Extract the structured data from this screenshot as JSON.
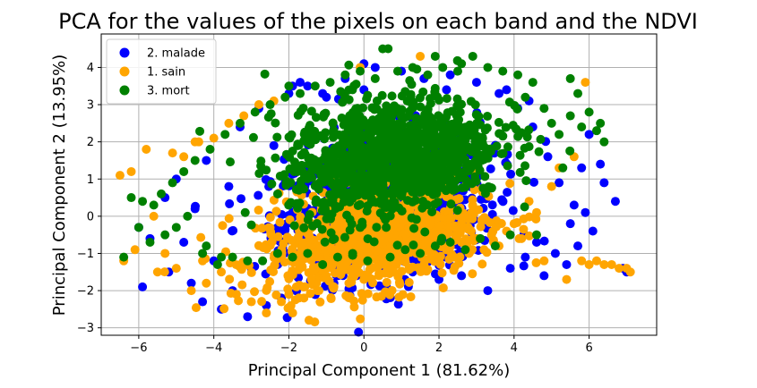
{
  "chart_data": {
    "type": "scatter",
    "title": "PCA for the values of the pixels on each band and the NDVI",
    "xlabel": "Principal Component 1 (81.62%)",
    "ylabel": "Principal Component 2 (13.95%)",
    "xlim": [
      -7.0,
      7.8
    ],
    "ylim": [
      -3.2,
      4.9
    ],
    "xticks": [
      -6,
      -4,
      -2,
      0,
      2,
      4,
      6
    ],
    "yticks": [
      -3,
      -2,
      -1,
      0,
      1,
      2,
      3,
      4
    ],
    "grid": true,
    "legend_position": "top-left",
    "series": [
      {
        "name": "2. malade",
        "color": "#0000ff",
        "points": [
          [
            -6.0,
            -0.3
          ],
          [
            -5.9,
            -1.9
          ],
          [
            -5.7,
            -0.6
          ],
          [
            -5.3,
            0.5
          ],
          [
            -5.2,
            -1.5
          ],
          [
            -5.0,
            1.0
          ],
          [
            -4.8,
            -0.7
          ],
          [
            -4.6,
            -1.8
          ],
          [
            -4.5,
            0.2
          ],
          [
            -4.3,
            -2.3
          ],
          [
            -4.2,
            1.5
          ],
          [
            -4.0,
            -1.2
          ],
          [
            -3.8,
            -2.5
          ],
          [
            -3.6,
            0.8
          ],
          [
            -3.5,
            -2.0
          ],
          [
            -3.3,
            2.4
          ],
          [
            -3.1,
            -2.7
          ],
          [
            -3.0,
            -1.4
          ],
          [
            -2.8,
            2.9
          ],
          [
            -2.6,
            -2.4
          ],
          [
            -2.4,
            1.9
          ],
          [
            -2.2,
            -2.2
          ],
          [
            -2.0,
            3.3
          ],
          [
            -1.9,
            3.5
          ],
          [
            -1.7,
            3.6
          ],
          [
            -1.5,
            3.5
          ],
          [
            -1.3,
            -2.1
          ],
          [
            -1.0,
            3.2
          ],
          [
            -0.8,
            -1.8
          ],
          [
            -0.5,
            3.7
          ],
          [
            -0.2,
            -1.6
          ],
          [
            0.0,
            3.4
          ],
          [
            0.3,
            4.0
          ],
          [
            0.6,
            -1.9
          ],
          [
            1.0,
            3.9
          ],
          [
            1.3,
            -1.5
          ],
          [
            1.6,
            3.7
          ],
          [
            2.0,
            -1.7
          ],
          [
            2.3,
            3.8
          ],
          [
            2.6,
            -1.6
          ],
          [
            3.0,
            3.6
          ],
          [
            3.3,
            -2.0
          ],
          [
            3.6,
            3.3
          ],
          [
            3.9,
            -1.4
          ],
          [
            4.1,
            2.9
          ],
          [
            4.3,
            -1.1
          ],
          [
            4.5,
            2.4
          ],
          [
            4.6,
            -0.7
          ],
          [
            4.8,
            -1.6
          ],
          [
            4.9,
            1.6
          ],
          [
            5.1,
            -1.0
          ],
          [
            5.2,
            0.9
          ],
          [
            5.4,
            -1.3
          ],
          [
            5.5,
            -0.2
          ],
          [
            5.6,
            0.3
          ],
          [
            5.7,
            -0.8
          ],
          [
            5.8,
            1.3
          ],
          [
            5.9,
            0.1
          ],
          [
            6.0,
            2.2
          ],
          [
            6.1,
            -0.4
          ],
          [
            6.3,
            1.4
          ],
          [
            6.4,
            0.9
          ],
          [
            6.7,
            0.4
          ],
          [
            6.9,
            -1.4
          ],
          [
            7.0,
            -1.5
          ],
          [
            2.2,
            3.4
          ],
          [
            0.0,
            4.1
          ],
          [
            -1.1,
            3.3
          ],
          [
            3.8,
            3.4
          ],
          [
            4.4,
            3.1
          ]
        ]
      },
      {
        "name": "1. sain",
        "color": "#ffa500",
        "points": [
          [
            -6.5,
            1.1
          ],
          [
            -6.4,
            -1.2
          ],
          [
            -6.2,
            1.2
          ],
          [
            -6.1,
            -0.9
          ],
          [
            -5.8,
            1.8
          ],
          [
            -5.6,
            0.0
          ],
          [
            -5.5,
            -1.5
          ],
          [
            -5.3,
            -1.0
          ],
          [
            -5.1,
            1.7
          ],
          [
            -5.0,
            -1.4
          ],
          [
            -4.8,
            1.6
          ],
          [
            -4.6,
            -2.0
          ],
          [
            -4.4,
            2.0
          ],
          [
            -4.2,
            -1.8
          ],
          [
            -4.0,
            2.1
          ],
          [
            -3.8,
            -1.5
          ],
          [
            -3.6,
            2.5
          ],
          [
            -3.4,
            -2.1
          ],
          [
            -3.2,
            2.7
          ],
          [
            -3.0,
            -2.3
          ],
          [
            -2.8,
            3.0
          ],
          [
            -2.6,
            -2.6
          ],
          [
            -2.4,
            3.1
          ],
          [
            -2.2,
            -2.3
          ],
          [
            -2.0,
            -2.1
          ],
          [
            -1.8,
            -1.9
          ],
          [
            -1.6,
            -2.2
          ],
          [
            -1.4,
            -1.7
          ],
          [
            -1.2,
            -2.0
          ],
          [
            -1.0,
            -1.6
          ],
          [
            -0.8,
            -1.9
          ],
          [
            -0.6,
            -1.5
          ],
          [
            -0.4,
            -1.8
          ],
          [
            -0.2,
            -1.3
          ],
          [
            0.0,
            -1.7
          ],
          [
            0.2,
            -1.4
          ],
          [
            0.4,
            -1.6
          ],
          [
            0.6,
            -1.2
          ],
          [
            0.8,
            -1.5
          ],
          [
            1.0,
            -1.1
          ],
          [
            1.2,
            -1.4
          ],
          [
            1.4,
            -1.0
          ],
          [
            1.6,
            -1.3
          ],
          [
            1.8,
            -0.9
          ],
          [
            2.0,
            -1.2
          ],
          [
            2.2,
            -0.8
          ],
          [
            2.4,
            -1.1
          ],
          [
            2.6,
            -0.7
          ],
          [
            2.8,
            -1.0
          ],
          [
            3.0,
            -0.6
          ],
          [
            3.2,
            -0.9
          ],
          [
            3.4,
            -0.5
          ],
          [
            3.6,
            -0.8
          ],
          [
            3.8,
            -0.4
          ],
          [
            4.0,
            -0.2
          ],
          [
            4.2,
            -0.6
          ],
          [
            4.4,
            0.4
          ],
          [
            4.6,
            0.1
          ],
          [
            4.8,
            -1.2
          ],
          [
            5.0,
            0.8
          ],
          [
            5.2,
            1.3
          ],
          [
            5.4,
            -1.7
          ],
          [
            5.6,
            1.6
          ],
          [
            5.8,
            -1.2
          ],
          [
            6.0,
            -1.3
          ],
          [
            6.2,
            -1.2
          ],
          [
            6.4,
            -1.3
          ],
          [
            6.6,
            -1.3
          ],
          [
            6.8,
            -1.4
          ],
          [
            7.0,
            -1.4
          ],
          [
            7.1,
            -1.5
          ],
          [
            5.9,
            3.6
          ],
          [
            1.5,
            4.3
          ],
          [
            -0.1,
            4.0
          ],
          [
            -4.3,
            -1.2
          ],
          [
            -4.5,
            2.0
          ],
          [
            -1.9,
            -2.6
          ],
          [
            2.5,
            -0.5
          ]
        ]
      },
      {
        "name": "3. mort",
        "color": "#008000",
        "points": [
          [
            -6.4,
            -1.1
          ],
          [
            -6.2,
            0.5
          ],
          [
            -6.0,
            -0.3
          ],
          [
            -5.9,
            0.4
          ],
          [
            -5.7,
            -0.7
          ],
          [
            -5.6,
            0.3
          ],
          [
            -5.4,
            0.6
          ],
          [
            -5.3,
            -0.5
          ],
          [
            -5.1,
            0.9
          ],
          [
            -5.0,
            -0.3
          ],
          [
            -4.8,
            1.2
          ],
          [
            -4.7,
            0.0
          ],
          [
            -4.5,
            1.5
          ],
          [
            -4.3,
            -1.0
          ],
          [
            -4.1,
            1.8
          ],
          [
            -3.9,
            -1.3
          ],
          [
            -3.7,
            2.2
          ],
          [
            -3.5,
            -1.1
          ],
          [
            -3.3,
            2.5
          ],
          [
            -3.1,
            -1.2
          ],
          [
            -2.9,
            2.8
          ],
          [
            -2.7,
            -1.2
          ],
          [
            -2.5,
            3.0
          ],
          [
            -2.3,
            -1.0
          ],
          [
            -2.1,
            3.2
          ],
          [
            -1.9,
            -1.1
          ],
          [
            -1.7,
            3.3
          ],
          [
            -1.5,
            -1.0
          ],
          [
            -1.3,
            3.5
          ],
          [
            -1.1,
            -1.3
          ],
          [
            -0.9,
            3.6
          ],
          [
            -0.7,
            -1.1
          ],
          [
            -0.5,
            3.8
          ],
          [
            -0.3,
            -1.0
          ],
          [
            -0.1,
            3.9
          ],
          [
            0.1,
            -1.2
          ],
          [
            0.3,
            3.7
          ],
          [
            0.5,
            4.5
          ],
          [
            0.7,
            -1.1
          ],
          [
            0.9,
            3.9
          ],
          [
            1.1,
            -0.9
          ],
          [
            1.3,
            4.0
          ],
          [
            1.5,
            -1.0
          ],
          [
            1.7,
            3.8
          ],
          [
            1.9,
            -0.8
          ],
          [
            2.1,
            4.0
          ],
          [
            2.3,
            -0.7
          ],
          [
            2.5,
            3.9
          ],
          [
            2.7,
            -0.9
          ],
          [
            2.9,
            4.3
          ],
          [
            3.1,
            -0.6
          ],
          [
            3.3,
            4.0
          ],
          [
            3.5,
            -0.8
          ],
          [
            3.7,
            3.9
          ],
          [
            3.9,
            -0.5
          ],
          [
            4.1,
            3.8
          ],
          [
            4.3,
            3.2
          ],
          [
            4.5,
            3.6
          ],
          [
            4.6,
            -0.5
          ],
          [
            4.8,
            2.9
          ],
          [
            5.0,
            2.5
          ],
          [
            5.2,
            2.2
          ],
          [
            5.3,
            1.3
          ],
          [
            5.5,
            2.7
          ],
          [
            5.5,
            3.7
          ],
          [
            5.7,
            3.3
          ],
          [
            5.8,
            2.4
          ],
          [
            6.0,
            2.8
          ],
          [
            6.2,
            2.3
          ],
          [
            6.3,
            2.5
          ],
          [
            6.4,
            2.0
          ],
          [
            -2.0,
            3.5
          ],
          [
            1.9,
            4.3
          ],
          [
            2.6,
            4.1
          ],
          [
            -3.8,
            -1.1
          ],
          [
            -4.2,
            -0.8
          ]
        ]
      }
    ]
  }
}
